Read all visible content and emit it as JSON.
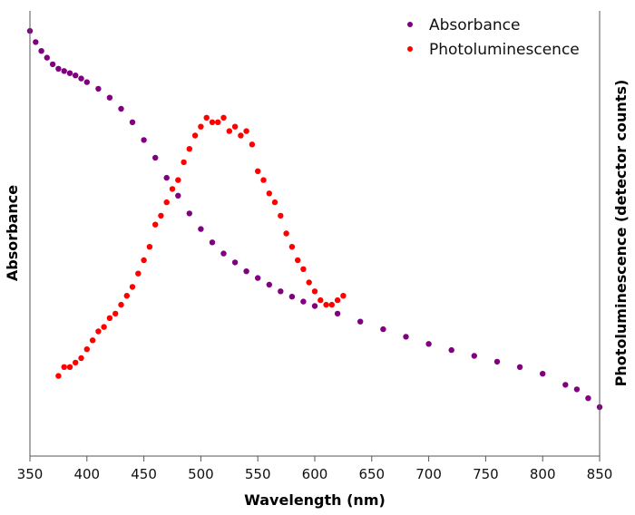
{
  "chart_data": {
    "type": "scatter",
    "title": "",
    "xlabel": "Wavelength (nm)",
    "ylabel_left": "Absorbance",
    "ylabel_right": "Photoluminescence (detector counts)",
    "xlim": [
      350,
      850
    ],
    "ylim": [
      0,
      1
    ],
    "xticks": [
      "350",
      "400",
      "450",
      "500",
      "550",
      "600",
      "650",
      "700",
      "750",
      "800",
      "850"
    ],
    "xtick_values": [
      350,
      400,
      450,
      500,
      550,
      600,
      650,
      700,
      750,
      800,
      850
    ],
    "grid": false,
    "legend_position": "top-right",
    "series": [
      {
        "name": "Absorbance",
        "color": "#800080",
        "x": [
          350,
          355,
          360,
          365,
          370,
          375,
          380,
          385,
          390,
          395,
          400,
          410,
          420,
          430,
          440,
          450,
          460,
          470,
          480,
          490,
          500,
          510,
          520,
          530,
          540,
          550,
          560,
          570,
          580,
          590,
          600,
          620,
          640,
          660,
          680,
          700,
          720,
          740,
          760,
          780,
          800,
          820,
          830,
          840,
          850
        ],
        "y": [
          0.955,
          0.93,
          0.91,
          0.895,
          0.88,
          0.87,
          0.865,
          0.86,
          0.855,
          0.848,
          0.84,
          0.825,
          0.805,
          0.78,
          0.75,
          0.71,
          0.67,
          0.625,
          0.585,
          0.545,
          0.51,
          0.48,
          0.455,
          0.435,
          0.415,
          0.4,
          0.385,
          0.37,
          0.358,
          0.347,
          0.337,
          0.32,
          0.302,
          0.285,
          0.268,
          0.252,
          0.238,
          0.225,
          0.212,
          0.2,
          0.185,
          0.16,
          0.15,
          0.13,
          0.11
        ]
      },
      {
        "name": "Photoluminescence",
        "color": "#ff0000",
        "x": [
          375,
          380,
          385,
          390,
          395,
          400,
          405,
          410,
          415,
          420,
          425,
          430,
          435,
          440,
          445,
          450,
          455,
          460,
          465,
          470,
          475,
          480,
          485,
          490,
          495,
          500,
          505,
          510,
          515,
          520,
          525,
          530,
          535,
          540,
          545,
          550,
          555,
          560,
          565,
          570,
          575,
          580,
          585,
          590,
          595,
          600,
          605,
          610,
          615,
          620,
          625
        ],
        "y": [
          0.18,
          0.2,
          0.2,
          0.21,
          0.22,
          0.24,
          0.26,
          0.28,
          0.29,
          0.31,
          0.32,
          0.34,
          0.36,
          0.38,
          0.41,
          0.44,
          0.47,
          0.52,
          0.54,
          0.57,
          0.6,
          0.62,
          0.66,
          0.69,
          0.72,
          0.74,
          0.76,
          0.75,
          0.75,
          0.76,
          0.73,
          0.74,
          0.72,
          0.73,
          0.7,
          0.64,
          0.62,
          0.59,
          0.57,
          0.54,
          0.5,
          0.47,
          0.44,
          0.42,
          0.39,
          0.37,
          0.35,
          0.34,
          0.34,
          0.35,
          0.36
        ]
      }
    ]
  }
}
